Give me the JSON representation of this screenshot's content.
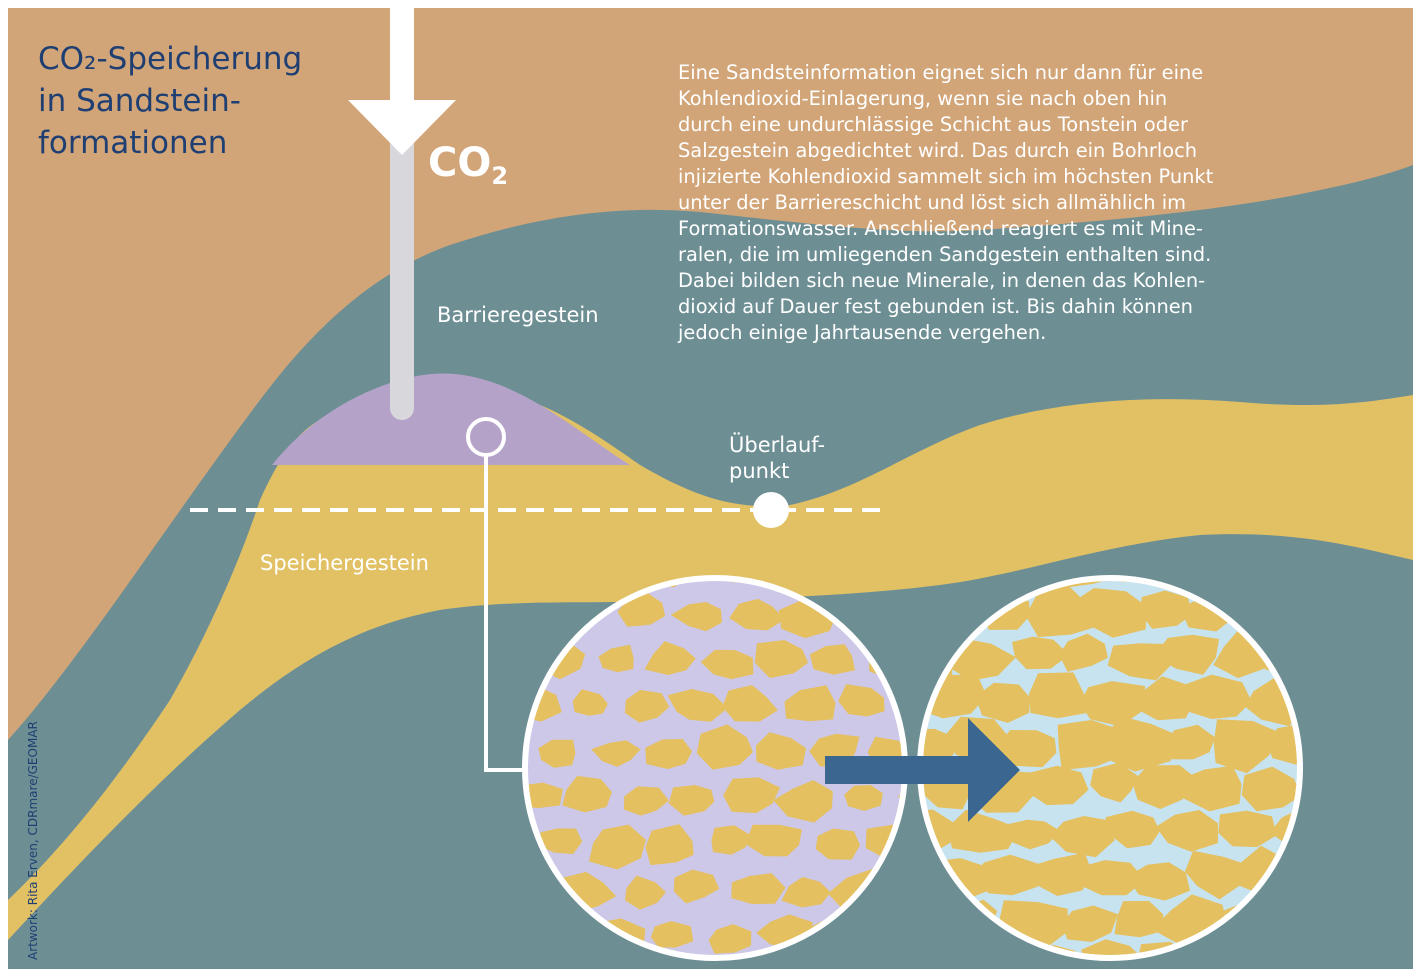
{
  "title": {
    "line1": "CO₂-Speicherung",
    "line2": "in Sandstein-",
    "line3": "formationen"
  },
  "description_lines": [
    "Eine Sandsteinformation eignet sich nur dann für eine",
    "Kohlendioxid-Einlagerung, wenn sie nach oben hin",
    "durch eine undurchlässige Schicht aus Tonstein oder",
    "Salzgestein abgedichtet wird. Das durch ein Bohrloch",
    "injizierte Kohlendioxid sammelt sich im höchsten Punkt",
    "unter der Barriereschicht und löst sich allmählich im",
    "Formationswasser. Anschließend reagiert es mit Mine-",
    "ralen, die im umliegenden Sandgestein enthalten sind.",
    "Dabei bilden sich neue Minerale, in denen das Kohlen-",
    "dioxid auf Dauer fest gebunden ist. Bis dahin können",
    "jedoch einige Jahrtausende vergehen."
  ],
  "labels": {
    "co2_main": "CO",
    "co2_sub": "2",
    "barrier": "Barrieregestein",
    "overflow_line1": "Überlauf-",
    "overflow_line2": "punkt",
    "storage": "Speichergestein"
  },
  "credit": "Artwork: Rita Erven, CDRmare/GEOMAR",
  "colors": {
    "overburden": "#d2a578",
    "barrier_rock": "#6d8f94",
    "storage_rock": "#e2c165",
    "co2_plume": "#b4a2c9",
    "well_pipe": "#d8d8dc",
    "grain": "#e4c060",
    "pore_co2": "#cdc8e8",
    "pore_water": "#c7e3f0",
    "arrow": "#3a6690",
    "title_text": "#1f3f73"
  },
  "icons": {
    "injection_arrow": "down-arrow-icon",
    "process_arrow": "right-arrow-icon",
    "overflow_marker": "circle-marker-icon",
    "sample_marker": "ring-marker-icon"
  }
}
